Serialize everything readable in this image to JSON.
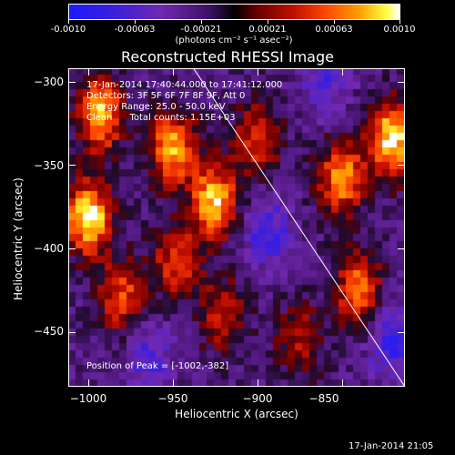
{
  "colorbar": {
    "tick_labels": [
      "-0.0010",
      "-0.00063",
      "-0.00021",
      "0.00021",
      "0.00063",
      "0.0010"
    ],
    "units": "(photons cm⁻² s⁻¹ asec⁻²)"
  },
  "chart_data": {
    "type": "heatmap",
    "title": "Reconstructed RHESSI Image",
    "xlabel": "Heliocentric X (arcsec)",
    "ylabel": "Heliocentric Y (arcsec)",
    "xlim": [
      -1012,
      -813
    ],
    "ylim": [
      -483,
      -292
    ],
    "x_ticks": [
      -1000,
      -950,
      -900,
      -850
    ],
    "y_ticks": [
      -300,
      -350,
      -400,
      -450
    ],
    "x_tick_labels": [
      "−1000",
      "−950",
      "−900",
      "−850"
    ],
    "y_tick_labels": [
      "−300",
      "−350",
      "−400",
      "−450"
    ],
    "limb_line": [
      [
        -938,
        -292
      ],
      [
        -813,
        -483
      ]
    ],
    "peak": [
      -1002,
      -382
    ],
    "grid_shape": [
      46,
      44
    ],
    "hot_spots": [
      {
        "x": -1000,
        "y": -382,
        "intensity": 1.0
      },
      {
        "x": -993,
        "y": -320,
        "intensity": 0.8
      },
      {
        "x": -950,
        "y": -340,
        "intensity": 0.75
      },
      {
        "x": -925,
        "y": -372,
        "intensity": 0.85
      },
      {
        "x": -948,
        "y": -408,
        "intensity": 0.45
      },
      {
        "x": -980,
        "y": -430,
        "intensity": 0.5
      },
      {
        "x": -850,
        "y": -358,
        "intensity": 0.7
      },
      {
        "x": -820,
        "y": -335,
        "intensity": 0.95
      },
      {
        "x": -840,
        "y": -425,
        "intensity": 0.6
      },
      {
        "x": -900,
        "y": -335,
        "intensity": 0.45
      },
      {
        "x": -920,
        "y": -440,
        "intensity": 0.35
      },
      {
        "x": -875,
        "y": -455,
        "intensity": 0.3
      }
    ],
    "cold_spots": [
      {
        "x": -895,
        "y": -390,
        "intensity": -0.55
      },
      {
        "x": -965,
        "y": -465,
        "intensity": -0.45
      },
      {
        "x": -820,
        "y": -455,
        "intensity": -0.6
      },
      {
        "x": -860,
        "y": -300,
        "intensity": -0.4
      }
    ],
    "grid": "off",
    "colormap": "blue-purple-black-red-yellow-white"
  },
  "annotations": {
    "time_range": "17-Jan-2014 17:40:44.000 to 17:41:12.000",
    "detectors": "Detectors: 3F 5F 6F 7F 8F 9F, Att 0",
    "energy": "Energy Range: 25.0 - 50.0 keV",
    "method": "Clean      Total counts: 1.15E+03",
    "peak_text": "Position of Peak = [-1002,-382]"
  },
  "footer": {
    "timestamp": "17-Jan-2014 21:05"
  },
  "colors": {
    "background": "#000000",
    "foreground": "#ffffff"
  }
}
